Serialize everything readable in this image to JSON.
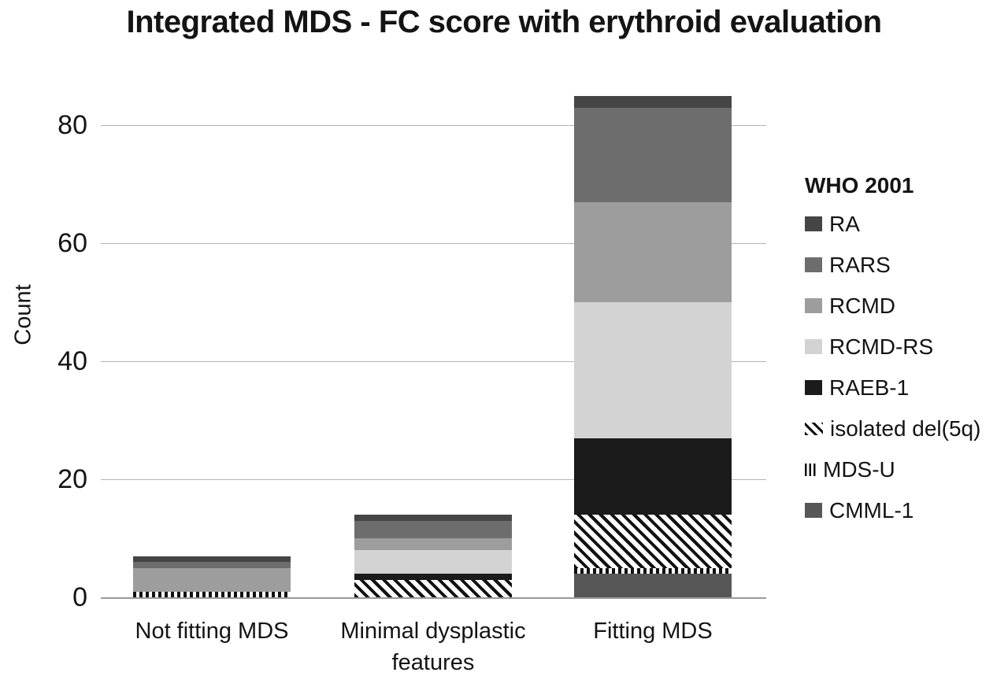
{
  "chart_data": {
    "type": "stacked-bar",
    "title": "Integrated MDS - FC score with erythroid evaluation",
    "ylabel": "Count",
    "xlabel": "",
    "ylim": [
      0,
      88
    ],
    "yticks": [
      0,
      20,
      40,
      60,
      80
    ],
    "grid": "horizontal gridlines at y ticks",
    "legend_title": "WHO 2001",
    "legend_position": "right",
    "stack_order_bottom_to_top": [
      "CMML-1",
      "MDS-U",
      "isolated del(5q)",
      "RAEB-1",
      "RCMD-RS",
      "RCMD",
      "RARS",
      "RA"
    ],
    "categories": [
      "Not fitting MDS",
      "Minimal dysplastic features",
      "Fitting MDS"
    ],
    "series": [
      {
        "name": "RA",
        "pattern": "solid",
        "color": "#454545",
        "values": [
          1,
          1,
          2
        ]
      },
      {
        "name": "RARS",
        "pattern": "solid",
        "color": "#6d6d6d",
        "values": [
          1,
          3,
          16
        ]
      },
      {
        "name": "RCMD",
        "pattern": "solid",
        "color": "#9d9d9d",
        "values": [
          4,
          2,
          17
        ]
      },
      {
        "name": "RCMD-RS",
        "pattern": "solid",
        "color": "#d3d3d3",
        "values": [
          0,
          4,
          23
        ]
      },
      {
        "name": "RAEB-1",
        "pattern": "solid",
        "color": "#1b1b1b",
        "values": [
          0,
          1,
          13
        ]
      },
      {
        "name": "isolated del(5q)",
        "pattern": "diagonal-hatch",
        "color": "#111111",
        "background": "#ffffff",
        "values": [
          0,
          3,
          9
        ]
      },
      {
        "name": "MDS-U",
        "pattern": "vertical-stripes",
        "color": "#111111",
        "background": "#ffffff",
        "values": [
          1,
          0,
          1
        ]
      },
      {
        "name": "CMML-1",
        "pattern": "solid",
        "color": "#575757",
        "values": [
          0,
          0,
          4
        ]
      }
    ],
    "totals": [
      7,
      14,
      85
    ]
  },
  "colors": {
    "background": "#ffffff",
    "gridline": "#b5b5b5",
    "axis_line": "#9a9a9a",
    "text": "#141414"
  }
}
